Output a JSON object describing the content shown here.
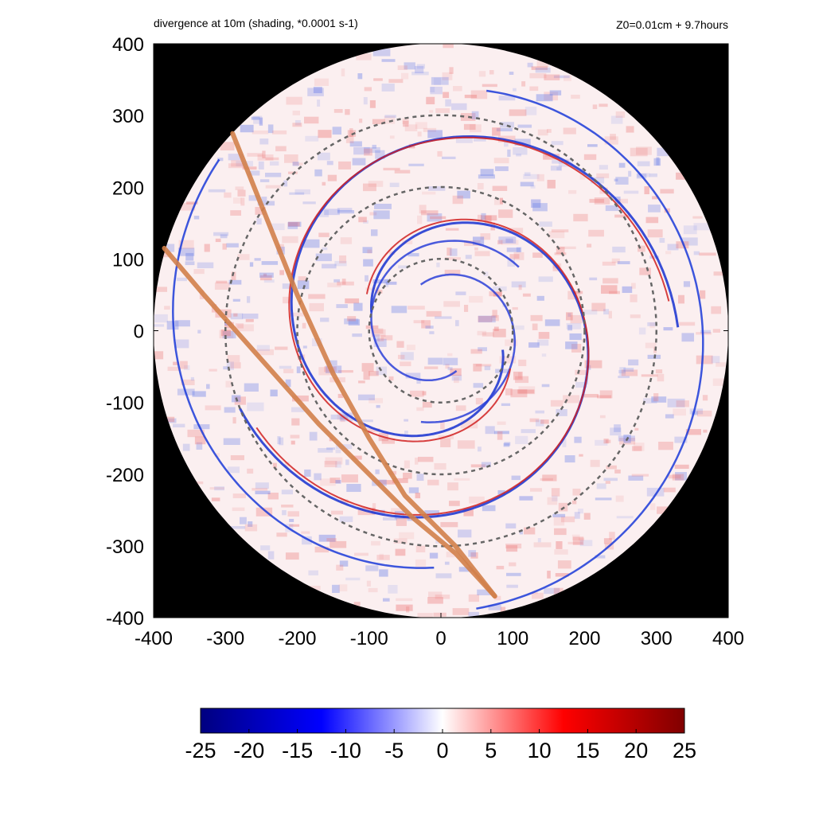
{
  "chart_data": {
    "type": "heatmap",
    "title": "divergence at 10m (shading, *0.0001 s-1)",
    "subtitle": "Z0=0.01cm  + 9.7hours",
    "xlabel": "",
    "ylabel": "",
    "xlim": [
      -400,
      400
    ],
    "ylim": [
      -400,
      400
    ],
    "x_ticks": [
      "-400",
      "-300",
      "-200",
      "-100",
      "0",
      "100",
      "200",
      "300",
      "400"
    ],
    "y_ticks": [
      "400",
      "300",
      "200",
      "100",
      "0",
      "-100",
      "-200",
      "-300",
      "-400"
    ],
    "domain_radius": 400,
    "outside_domain_color": "#000000",
    "dashed_circle_radii": [
      100,
      200,
      300
    ],
    "dashed_circle_color": "#666666",
    "tracks": [
      {
        "color": "#d2804a",
        "points": [
          [
            -290,
            275
          ],
          [
            -250,
            175
          ],
          [
            -200,
            50
          ],
          [
            -150,
            -60
          ],
          [
            -100,
            -150
          ],
          [
            -50,
            -230
          ],
          [
            20,
            -300
          ],
          [
            75,
            -370
          ]
        ]
      },
      {
        "color": "#d2804a",
        "points": [
          [
            -385,
            115
          ],
          [
            -330,
            50
          ],
          [
            -250,
            -40
          ],
          [
            -170,
            -130
          ],
          [
            -100,
            -200
          ],
          [
            -40,
            -260
          ],
          [
            20,
            -310
          ],
          [
            75,
            -370
          ]
        ]
      }
    ],
    "colorbar": {
      "min": -25,
      "max": 25,
      "tick_labels": [
        "-25",
        "-20",
        "-15",
        "-10",
        "-5",
        "0",
        "5",
        "10",
        "15",
        "20",
        "25"
      ],
      "color_stops": [
        "#000080",
        "#0000ff",
        "#ffffff",
        "#ff0000",
        "#800000"
      ]
    },
    "background_color": "#fbeff0"
  }
}
